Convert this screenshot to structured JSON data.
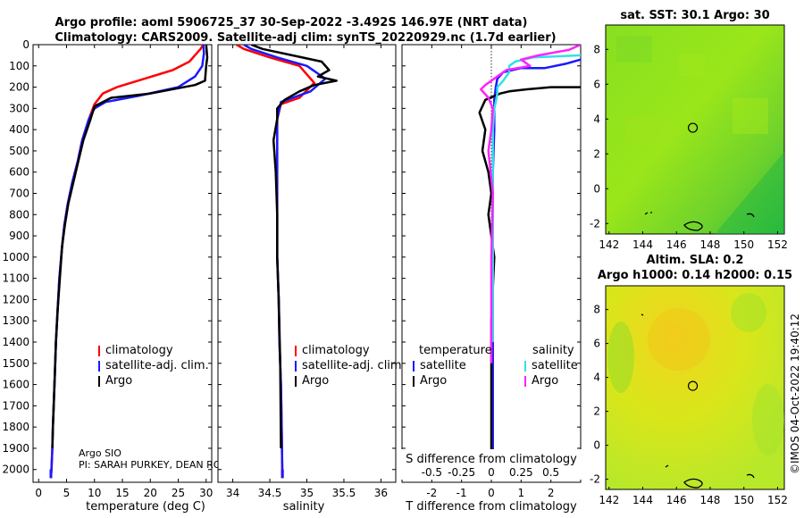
{
  "figure": {
    "title_line1": "Argo profile: aoml 5906725_37 30-Sep-2022 -3.492S 146.97E (NRT data)",
    "title_line2": "Climatology: CARS2009. Satellite-adj clim: synTS_20220929.nc (1.7d earlier)",
    "credit": "©IMOS 04-Oct-2022 19:40:12",
    "pi_line1": "Argo SIO",
    "pi_line2": "PI: SARAH PURKEY, DEAN RO",
    "colors": {
      "climatology": "#ff0000",
      "satellite": "#1a1aff",
      "argo": "#000000",
      "sat_salinity": "#33e0e8",
      "argo_salinity": "#ff22ff"
    }
  },
  "legend": {
    "climatology": "climatology",
    "satellite_adj": "satellite-adj. clim.",
    "argo": "Argo",
    "temperature_header": "temperature",
    "salinity_header": "salinity",
    "satellite": "satellite",
    "diff_argo_t": "Argo",
    "diff_argo_s": "Argo"
  },
  "chart_data": [
    {
      "type": "line",
      "panel": "temperature",
      "xlabel": "temperature (deg C)",
      "xlim": [
        -1,
        31
      ],
      "ylim": [
        2060,
        0
      ],
      "xticks": [
        "0",
        "5",
        "10",
        "15",
        "20",
        "25",
        "30"
      ],
      "yticks": [
        "0",
        "100",
        "200",
        "300",
        "400",
        "500",
        "600",
        "700",
        "800",
        "900",
        "1000",
        "1100",
        "1200",
        "1300",
        "1400",
        "1500",
        "1600",
        "1700",
        "1800",
        "1900",
        "2000"
      ],
      "series": [
        {
          "name": "climatology",
          "color": "#ff0000",
          "x": [
            29.5,
            29,
            27,
            24,
            19,
            14,
            11.5,
            10,
            9,
            7.8,
            7,
            6,
            5.2,
            4.6,
            4.2,
            3.7,
            3.4,
            3.1,
            2.9,
            2.7,
            2.55,
            2.45,
            2.3,
            2.2
          ],
          "y": [
            0,
            20,
            80,
            120,
            160,
            200,
            230,
            280,
            350,
            450,
            550,
            650,
            750,
            850,
            950,
            1100,
            1250,
            1400,
            1550,
            1700,
            1800,
            1900,
            2000,
            2040
          ]
        },
        {
          "name": "satellite-adj. clim.",
          "color": "#1a1aff",
          "x": [
            29.5,
            29.6,
            29.3,
            28,
            25,
            18,
            12,
            10,
            9,
            7.8,
            7,
            6,
            5.2,
            4.6,
            4.2,
            3.7,
            3.4,
            3.1,
            2.9,
            2.7,
            2.55,
            2.45,
            2.3,
            2.2
          ],
          "y": [
            0,
            40,
            100,
            150,
            200,
            240,
            270,
            300,
            350,
            450,
            550,
            650,
            750,
            850,
            950,
            1100,
            1250,
            1400,
            1550,
            1700,
            1800,
            1900,
            2000,
            2040
          ]
        },
        {
          "name": "Argo",
          "color": "#000000",
          "x": [
            30,
            30.2,
            30,
            29.8,
            28,
            20,
            13,
            10,
            9.3,
            8,
            7.1,
            6.2,
            5.3,
            4.7,
            4.2,
            3.8,
            3.4,
            3.1,
            2.9,
            2.7,
            2.55,
            2.45
          ],
          "y": [
            0,
            60,
            100,
            170,
            190,
            230,
            250,
            290,
            350,
            450,
            550,
            650,
            750,
            850,
            950,
            1100,
            1250,
            1400,
            1550,
            1700,
            1800,
            1900
          ]
        }
      ]
    },
    {
      "type": "line",
      "panel": "salinity",
      "xlabel": "salinity",
      "xlim": [
        33.8,
        36.2
      ],
      "ylim": [
        2060,
        0
      ],
      "xticks": [
        "34",
        "34.5",
        "35",
        "35.5",
        "36"
      ],
      "series": [
        {
          "name": "climatology",
          "color": "#ff0000",
          "x": [
            34.05,
            34.15,
            34.5,
            34.9,
            35.1,
            34.9,
            34.65,
            34.6,
            34.6,
            34.6,
            34.6,
            34.6,
            34.62,
            34.63,
            34.65,
            34.66,
            34.67
          ],
          "y": [
            0,
            20,
            60,
            100,
            180,
            250,
            280,
            350,
            450,
            600,
            800,
            1000,
            1200,
            1400,
            1600,
            1800,
            2040
          ]
        },
        {
          "name": "satellite-adj. clim.",
          "color": "#1a1aff",
          "x": [
            34.15,
            34.25,
            34.6,
            35.0,
            35.25,
            35.05,
            34.65,
            34.6,
            34.6,
            34.6,
            34.6,
            34.6,
            34.62,
            34.63,
            34.65,
            34.66,
            34.67
          ],
          "y": [
            0,
            20,
            60,
            100,
            160,
            220,
            270,
            350,
            450,
            600,
            800,
            1000,
            1200,
            1400,
            1600,
            1800,
            2040
          ]
        },
        {
          "name": "Argo",
          "color": "#000000",
          "x": [
            34.25,
            34.4,
            34.8,
            35.2,
            35.3,
            35.15,
            35.4,
            35.1,
            34.9,
            34.7,
            34.6,
            34.6,
            34.55,
            34.58,
            34.6,
            34.6,
            34.62,
            34.64,
            34.65
          ],
          "y": [
            0,
            20,
            50,
            80,
            120,
            150,
            170,
            190,
            220,
            260,
            300,
            350,
            450,
            600,
            800,
            1000,
            1200,
            1500,
            1900
          ]
        }
      ]
    },
    {
      "type": "line",
      "panel": "difference",
      "xlabel": "T difference from climatology",
      "top_axis_label": "S difference from climatology",
      "xlim": [
        -3,
        3
      ],
      "ylim": [
        2060,
        0
      ],
      "xticks": [
        "-2",
        "-1",
        "0",
        "1",
        "2"
      ],
      "top_xticks": [
        "-0.5",
        "-0.25",
        "0",
        "0.25",
        "0.5"
      ],
      "series": [
        {
          "name": "satellite (temperature)",
          "color": "#1a1aff",
          "x": [
            3,
            2.5,
            1.8,
            1,
            0.4,
            0.2,
            0.15,
            0.1,
            0.1,
            0.1,
            0.05,
            0.05,
            0.05,
            0.05,
            0.05,
            0.05
          ],
          "y": [
            70,
            90,
            110,
            110,
            130,
            160,
            200,
            260,
            300,
            400,
            600,
            800,
            1000,
            1400,
            1800,
            2040
          ]
        },
        {
          "name": "Argo (temperature)",
          "color": "#000000",
          "x": [
            3,
            2.0,
            1.2,
            0.6,
            0.3,
            -0.2,
            -0.4,
            -0.2,
            -0.3,
            -0.1,
            0,
            -0.1,
            0.1,
            0,
            0,
            0
          ],
          "y": [
            200,
            200,
            210,
            220,
            230,
            260,
            320,
            400,
            500,
            600,
            700,
            800,
            1000,
            1300,
            1700,
            2000
          ]
        },
        {
          "name": "satellite (salinity)",
          "color": "#33e0e8",
          "x": [
            3,
            2.2,
            1.4,
            0.8,
            0.6,
            0.6,
            0.4,
            0.2,
            0.2,
            0.15,
            0.1,
            0.05,
            0.05,
            0.05,
            0.05
          ],
          "y": [
            50,
            55,
            60,
            80,
            100,
            130,
            170,
            200,
            230,
            270,
            300,
            400,
            600,
            900,
            1400
          ]
        },
        {
          "name": "Argo (salinity)",
          "color": "#ff22ff",
          "x": [
            3,
            2.6,
            1.6,
            1,
            1.3,
            0.5,
            -0.2,
            -0.35,
            -0.1,
            0.05,
            0,
            -0.1,
            0.05,
            0,
            0
          ],
          "y": [
            0,
            25,
            50,
            70,
            100,
            120,
            190,
            210,
            250,
            300,
            400,
            500,
            700,
            1000,
            1500
          ]
        }
      ]
    },
    {
      "type": "heatmap",
      "panel": "sat_sst_map",
      "title": "sat. SST: 30.1 Argo: 30",
      "xlim": [
        141.8,
        152.4
      ],
      "ylim": [
        -2.6,
        9.4
      ],
      "xticks": [
        "142",
        "144",
        "146",
        "148",
        "150",
        "152"
      ],
      "yticks": [
        "-2",
        "0",
        "2",
        "4",
        "6",
        "8"
      ],
      "marker": {
        "lon": 146.97,
        "lat": 3.5
      }
    },
    {
      "type": "heatmap",
      "panel": "sla_map",
      "title_line1": "Altim. SLA: 0.2",
      "title_line2": "Argo h1000: 0.14 h2000: 0.15",
      "xlim": [
        141.8,
        152.4
      ],
      "ylim": [
        -2.6,
        9.4
      ],
      "xticks": [
        "142",
        "144",
        "146",
        "148",
        "150",
        "152"
      ],
      "yticks": [
        "-2",
        "0",
        "2",
        "4",
        "6",
        "8"
      ],
      "marker": {
        "lon": 146.97,
        "lat": 3.5
      }
    }
  ]
}
